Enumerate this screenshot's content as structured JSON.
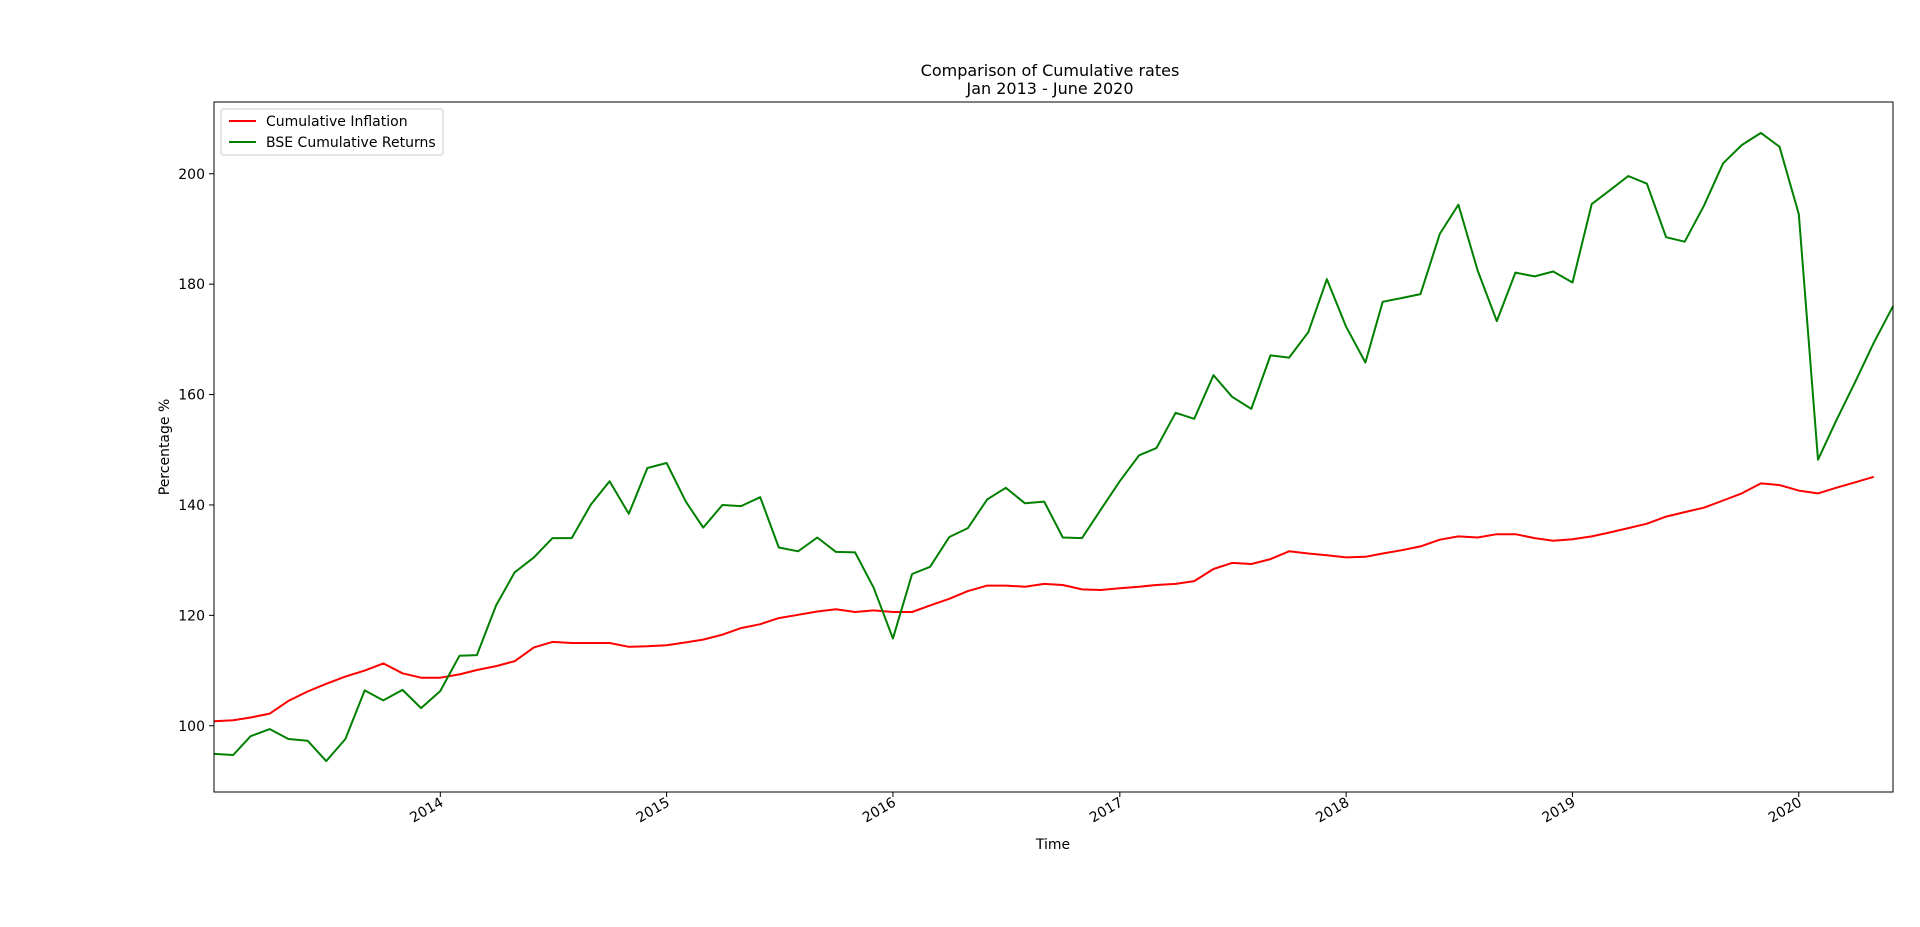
{
  "chart_data": {
    "type": "line",
    "title": "Comparison of Cumulative rates",
    "subtitle": "Jan 2013 - June 2020",
    "xlabel": "Time",
    "ylabel": "Percentage %",
    "xlim": [
      "2013-01-01",
      "2020-06-01"
    ],
    "ylim": [
      88,
      213
    ],
    "x_ticks": [
      "2014",
      "2015",
      "2016",
      "2017",
      "2018",
      "2019",
      "2020"
    ],
    "y_ticks": [
      100,
      120,
      140,
      160,
      180,
      200
    ],
    "grid": false,
    "legend_location": "upper-left",
    "x_start": "2013-01",
    "series": [
      {
        "name": "Cumulative Inflation",
        "color": "#ff0000",
        "values": [
          100.8,
          101.0,
          101.5,
          102.2,
          104.5,
          106.2,
          107.6,
          108.9,
          110.0,
          111.3,
          109.5,
          108.7,
          108.7,
          109.3,
          110.1,
          110.8,
          111.7,
          114.2,
          115.2,
          115.0,
          115.0,
          115.0,
          114.3,
          114.4,
          114.6,
          115.1,
          115.6,
          116.5,
          117.7,
          118.4,
          119.5,
          120.1,
          120.7,
          121.1,
          120.6,
          120.9,
          120.6,
          120.6,
          121.8,
          123.0,
          124.4,
          125.4,
          125.4,
          125.2,
          125.7,
          125.5,
          124.7,
          124.6,
          124.9,
          125.2,
          125.5,
          125.7,
          126.2,
          128.4,
          129.5,
          129.3,
          130.2,
          131.6,
          131.2,
          130.9,
          130.5,
          130.6,
          131.2,
          131.8,
          132.5,
          133.7,
          134.3,
          134.1,
          134.7,
          134.7,
          134.0,
          133.5,
          133.8,
          134.3,
          135.0,
          135.8,
          136.6,
          137.9,
          138.7,
          139.5,
          140.8,
          142.1,
          143.9,
          143.6,
          142.6,
          142.1,
          143.1,
          144.1,
          145.1
        ]
      },
      {
        "name": "BSE Cumulative Returns",
        "color": "#008000",
        "values": [
          94.9,
          94.7,
          98.1,
          99.4,
          97.6,
          97.3,
          93.6,
          97.6,
          106.4,
          104.6,
          106.5,
          103.2,
          106.3,
          112.7,
          112.8,
          121.8,
          127.8,
          130.5,
          134.0,
          134.0,
          140.1,
          144.3,
          138.4,
          146.7,
          147.6,
          140.6,
          135.9,
          140.0,
          139.8,
          141.4,
          132.3,
          131.6,
          134.1,
          131.5,
          131.4,
          125.0,
          115.8,
          127.5,
          128.8,
          134.2,
          135.8,
          141.0,
          143.1,
          140.3,
          140.6,
          134.1,
          134.0,
          139.1,
          144.3,
          149.0,
          150.3,
          156.7,
          155.6,
          163.5,
          159.6,
          157.4,
          167.1,
          166.7,
          171.3,
          180.9,
          172.3,
          165.8,
          176.8,
          177.5,
          178.2,
          189.1,
          194.4,
          182.5,
          173.3,
          182.1,
          181.4,
          182.3,
          180.3,
          194.5,
          196.9,
          199.6,
          198.2,
          188.5,
          187.7,
          194.2,
          201.9,
          205.2,
          207.4,
          204.9,
          192.7,
          148.2,
          155.2,
          162.3,
          169.4,
          176.0
        ]
      }
    ]
  }
}
